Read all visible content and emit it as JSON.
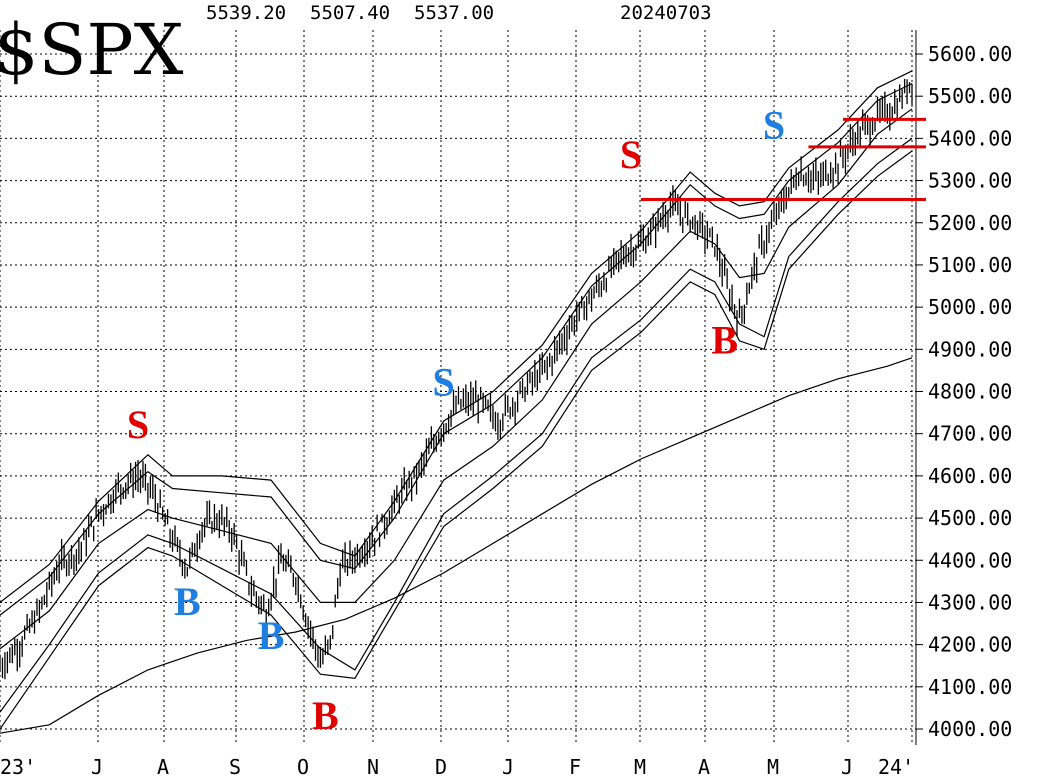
{
  "chart_data": {
    "type": "ohlc",
    "title": "$SPX",
    "ohlc_header": [
      "5539.20",
      "5507.40",
      "5537.00",
      "20240703"
    ],
    "ylim": [
      3980,
      5640
    ],
    "y_ticks": [
      "5600.00",
      "5500.00",
      "5400.00",
      "5300.00",
      "5200.00",
      "5100.00",
      "5000.00",
      "4900.00",
      "4800.00",
      "4700.00",
      "4600.00",
      "4500.00",
      "4400.00",
      "4300.00",
      "4200.00",
      "4100.00",
      "4000.00"
    ],
    "x_ticks": [
      "23'",
      "J",
      "A",
      "S",
      "O",
      "N",
      "D",
      "J",
      "F",
      "M",
      "A",
      "M",
      "J",
      "24'"
    ],
    "grid": true,
    "price_path": [
      [
        0,
        4150
      ],
      [
        4,
        4200
      ],
      [
        8,
        4280
      ],
      [
        12,
        4390
      ],
      [
        16,
        4420
      ],
      [
        20,
        4510
      ],
      [
        24,
        4570
      ],
      [
        28,
        4600
      ],
      [
        31,
        4560
      ],
      [
        35,
        4450
      ],
      [
        38,
        4380
      ],
      [
        41,
        4480
      ],
      [
        44,
        4500
      ],
      [
        47,
        4470
      ],
      [
        51,
        4330
      ],
      [
        54,
        4280
      ],
      [
        57,
        4400
      ],
      [
        60,
        4360
      ],
      [
        62,
        4270
      ],
      [
        65,
        4160
      ],
      [
        67,
        4200
      ],
      [
        69,
        4380
      ],
      [
        73,
        4420
      ],
      [
        77,
        4470
      ],
      [
        81,
        4550
      ],
      [
        85,
        4610
      ],
      [
        89,
        4700
      ],
      [
        93,
        4770
      ],
      [
        97,
        4780
      ],
      [
        101,
        4730
      ],
      [
        106,
        4800
      ],
      [
        111,
        4860
      ],
      [
        116,
        4960
      ],
      [
        121,
        5040
      ],
      [
        126,
        5120
      ],
      [
        131,
        5160
      ],
      [
        136,
        5240
      ],
      [
        141,
        5200
      ],
      [
        145,
        5150
      ],
      [
        148,
        5030
      ],
      [
        150,
        4970
      ],
      [
        152,
        5050
      ],
      [
        154,
        5130
      ],
      [
        158,
        5230
      ],
      [
        162,
        5320
      ],
      [
        166,
        5300
      ],
      [
        170,
        5340
      ],
      [
        174,
        5410
      ],
      [
        178,
        5450
      ],
      [
        182,
        5480
      ],
      [
        185,
        5537
      ]
    ],
    "series": [
      {
        "name": "",
        "role": "upper-outer-band",
        "values": [
          [
            0,
            4300
          ],
          [
            10,
            4390
          ],
          [
            20,
            4540
          ],
          [
            30,
            4650
          ],
          [
            35,
            4600
          ],
          [
            45,
            4600
          ],
          [
            55,
            4590
          ],
          [
            65,
            4440
          ],
          [
            72,
            4410
          ],
          [
            80,
            4540
          ],
          [
            90,
            4730
          ],
          [
            100,
            4800
          ],
          [
            110,
            4910
          ],
          [
            120,
            5080
          ],
          [
            130,
            5180
          ],
          [
            140,
            5320
          ],
          [
            145,
            5270
          ],
          [
            150,
            5240
          ],
          [
            155,
            5250
          ],
          [
            160,
            5330
          ],
          [
            170,
            5420
          ],
          [
            178,
            5520
          ],
          [
            185,
            5560
          ]
        ]
      },
      {
        "name": "",
        "role": "upper-inner-band",
        "values": [
          [
            0,
            4270
          ],
          [
            10,
            4360
          ],
          [
            20,
            4510
          ],
          [
            30,
            4610
          ],
          [
            35,
            4570
          ],
          [
            45,
            4560
          ],
          [
            55,
            4550
          ],
          [
            65,
            4400
          ],
          [
            72,
            4380
          ],
          [
            80,
            4500
          ],
          [
            90,
            4700
          ],
          [
            100,
            4770
          ],
          [
            110,
            4880
          ],
          [
            120,
            5050
          ],
          [
            130,
            5150
          ],
          [
            140,
            5290
          ],
          [
            145,
            5240
          ],
          [
            150,
            5210
          ],
          [
            155,
            5220
          ],
          [
            160,
            5300
          ],
          [
            170,
            5390
          ],
          [
            178,
            5490
          ],
          [
            185,
            5530
          ]
        ]
      },
      {
        "name": "",
        "role": "middle-band",
        "values": [
          [
            0,
            4190
          ],
          [
            10,
            4280
          ],
          [
            20,
            4440
          ],
          [
            30,
            4520
          ],
          [
            35,
            4500
          ],
          [
            45,
            4470
          ],
          [
            55,
            4440
          ],
          [
            65,
            4300
          ],
          [
            72,
            4300
          ],
          [
            80,
            4400
          ],
          [
            90,
            4590
          ],
          [
            100,
            4670
          ],
          [
            110,
            4780
          ],
          [
            120,
            4960
          ],
          [
            130,
            5060
          ],
          [
            140,
            5180
          ],
          [
            145,
            5150
          ],
          [
            150,
            5070
          ],
          [
            155,
            5080
          ],
          [
            160,
            5190
          ],
          [
            170,
            5290
          ],
          [
            178,
            5410
          ],
          [
            185,
            5470
          ]
        ]
      },
      {
        "name": "",
        "role": "lower-inner-band",
        "values": [
          [
            0,
            4040
          ],
          [
            10,
            4200
          ],
          [
            20,
            4370
          ],
          [
            30,
            4460
          ],
          [
            35,
            4440
          ],
          [
            45,
            4380
          ],
          [
            55,
            4320
          ],
          [
            65,
            4190
          ],
          [
            72,
            4140
          ],
          [
            80,
            4300
          ],
          [
            90,
            4510
          ],
          [
            100,
            4600
          ],
          [
            110,
            4700
          ],
          [
            120,
            4880
          ],
          [
            130,
            4970
          ],
          [
            140,
            5090
          ],
          [
            145,
            5060
          ],
          [
            150,
            4960
          ],
          [
            155,
            4930
          ],
          [
            160,
            5120
          ],
          [
            170,
            5250
          ],
          [
            178,
            5340
          ],
          [
            185,
            5400
          ]
        ]
      },
      {
        "name": "",
        "role": "lower-outer-band",
        "values": [
          [
            0,
            4000
          ],
          [
            10,
            4170
          ],
          [
            20,
            4340
          ],
          [
            30,
            4430
          ],
          [
            35,
            4410
          ],
          [
            45,
            4340
          ],
          [
            55,
            4270
          ],
          [
            65,
            4130
          ],
          [
            72,
            4120
          ],
          [
            80,
            4280
          ],
          [
            90,
            4480
          ],
          [
            100,
            4570
          ],
          [
            110,
            4670
          ],
          [
            120,
            4850
          ],
          [
            130,
            4940
          ],
          [
            140,
            5060
          ],
          [
            145,
            5030
          ],
          [
            150,
            4920
          ],
          [
            155,
            4900
          ],
          [
            160,
            5090
          ],
          [
            170,
            5220
          ],
          [
            178,
            5310
          ],
          [
            185,
            5370
          ]
        ]
      },
      {
        "name": "",
        "role": "200-day-ma",
        "values": [
          [
            0,
            3990
          ],
          [
            10,
            4010
          ],
          [
            20,
            4080
          ],
          [
            30,
            4140
          ],
          [
            40,
            4180
          ],
          [
            50,
            4210
          ],
          [
            60,
            4230
          ],
          [
            70,
            4260
          ],
          [
            80,
            4310
          ],
          [
            90,
            4370
          ],
          [
            100,
            4440
          ],
          [
            110,
            4510
          ],
          [
            120,
            4580
          ],
          [
            130,
            4640
          ],
          [
            140,
            4690
          ],
          [
            150,
            4740
          ],
          [
            160,
            4790
          ],
          [
            170,
            4830
          ],
          [
            180,
            4860
          ],
          [
            185,
            4880
          ]
        ]
      }
    ],
    "annotations": [
      {
        "text": "S",
        "color": "#e00000",
        "x": 28,
        "y": 4690
      },
      {
        "text": "B",
        "color": "#1e7fe0",
        "x": 38,
        "y": 4270
      },
      {
        "text": "B",
        "color": "#1e7fe0",
        "x": 55,
        "y": 4190
      },
      {
        "text": "B",
        "color": "#e00000",
        "x": 66,
        "y": 4000
      },
      {
        "text": "S",
        "color": "#1e7fe0",
        "x": 90,
        "y": 4790
      },
      {
        "text": "S",
        "color": "#e00000",
        "x": 128,
        "y": 5330
      },
      {
        "text": "B",
        "color": "#e00000",
        "x": 147,
        "y": 4890
      },
      {
        "text": "S",
        "color": "#1e7fe0",
        "x": 157,
        "y": 5400
      }
    ],
    "horizontal_lines": [
      {
        "y": 5255,
        "x_start": 130,
        "color": "#e00000"
      },
      {
        "y": 5380,
        "x_start": 164,
        "color": "#e00000"
      },
      {
        "y": 5445,
        "x_start": 171,
        "color": "#e00000"
      }
    ]
  },
  "colors": {
    "red": "#e00000",
    "blue": "#1e7fe0",
    "grid": "#000000",
    "ink": "#000000"
  }
}
